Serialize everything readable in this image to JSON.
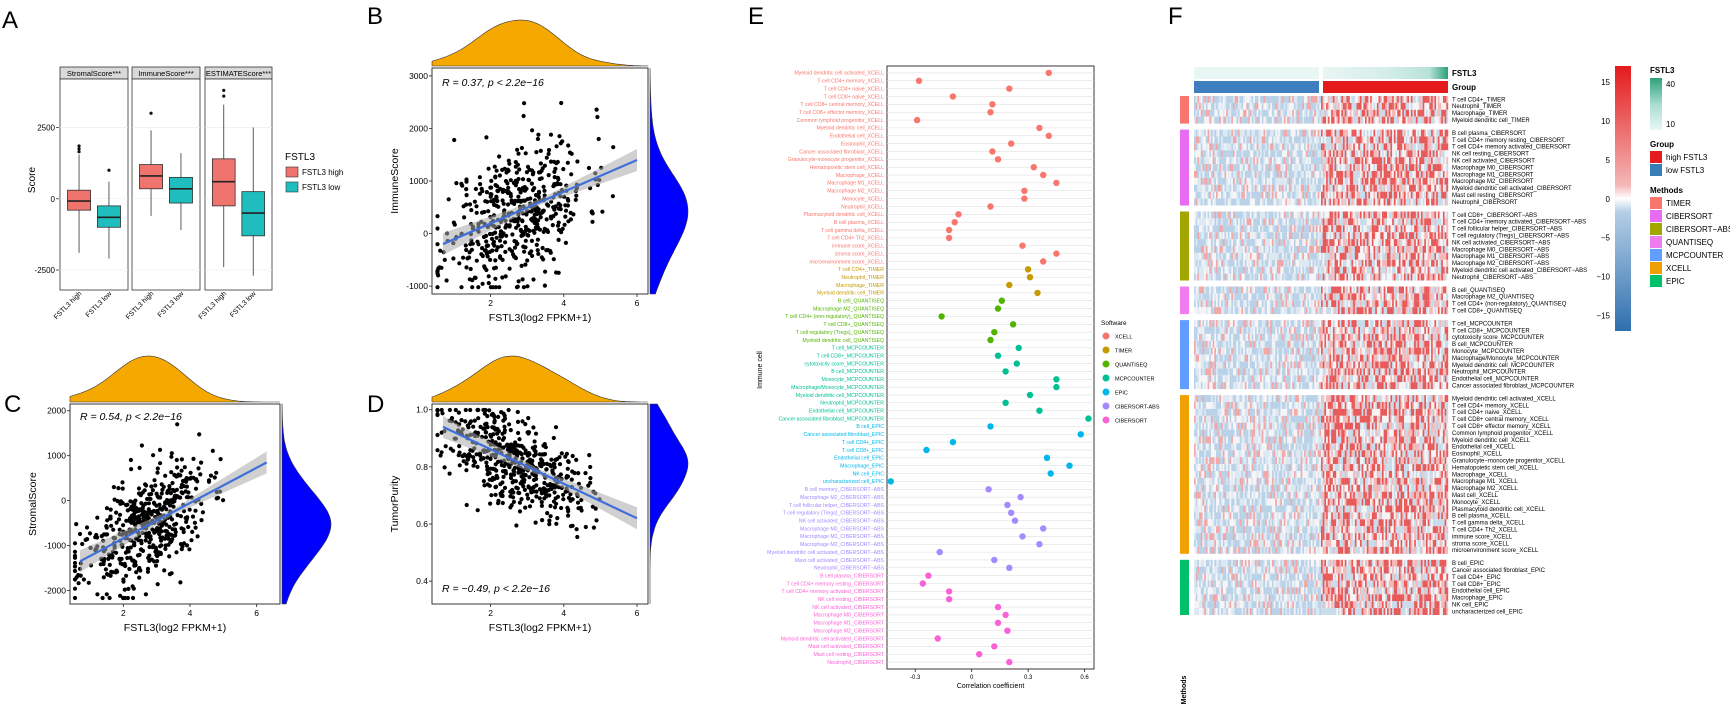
{
  "panel_labels": {
    "A": "A",
    "B": "B",
    "C": "C",
    "D": "D",
    "E": "E",
    "F": "F"
  },
  "colors": {
    "high": "#F0746E",
    "low": "#1FBDBD",
    "density": "#F5A800",
    "marginal": "#0000FF",
    "fit": "#3F6FD9"
  },
  "chart_data": [
    {
      "id": "A",
      "type": "box",
      "ylabel": "Score",
      "yticks": [
        -2500,
        0,
        2500
      ],
      "ylim": [
        -3200,
        4200
      ],
      "facets": [
        {
          "title": "StromalScore***",
          "groups": [
            {
              "label": "FSTL3 high",
              "q1": -400,
              "median": -80,
              "q3": 300,
              "wlo": -1900,
              "whi": 1550,
              "outliers": [
                1650,
                1750,
                1850
              ]
            },
            {
              "label": "FSTL3 low",
              "q1": -1000,
              "median": -650,
              "q3": -250,
              "wlo": -2100,
              "whi": 600,
              "outliers": [
                1000
              ]
            }
          ]
        },
        {
          "title": "ImmuneScore***",
          "groups": [
            {
              "label": "FSTL3 high",
              "q1": 350,
              "median": 800,
              "q3": 1200,
              "wlo": -600,
              "whi": 2400,
              "outliers": [
                3000
              ]
            },
            {
              "label": "FSTL3 low",
              "q1": -150,
              "median": 350,
              "q3": 750,
              "wlo": -1100,
              "whi": 1600,
              "outliers": []
            }
          ]
        },
        {
          "title": "ESTIMATEScore***",
          "groups": [
            {
              "label": "FSTL3 high",
              "q1": -250,
              "median": 600,
              "q3": 1400,
              "wlo": -2400,
              "whi": 3300,
              "outliers": [
                3600,
                3800
              ]
            },
            {
              "label": "FSTL3 low",
              "q1": -1300,
              "median": -500,
              "q3": 250,
              "wlo": -2700,
              "whi": 2500,
              "outliers": []
            }
          ]
        }
      ],
      "legend": {
        "title": "FSTL3",
        "items": [
          "FSTL3 high",
          "FSTL3 low"
        ]
      }
    },
    {
      "id": "B",
      "type": "scatter",
      "xlabel": "FSTL3(log2 FPKM+1)",
      "ylabel": "ImmuneScore",
      "stat_r": "R = 0.37, ",
      "stat_p": "p < 2.2e−16",
      "xticks": [
        2,
        4,
        6
      ],
      "yticks": [
        -1000,
        0,
        1000,
        2000,
        3000
      ],
      "xlim": [
        0.4,
        6.3
      ],
      "ylim": [
        -1150,
        3150
      ],
      "fit": {
        "x0": 0.7,
        "y0": -200,
        "x1": 6.0,
        "y1": 1400
      },
      "n": 520,
      "seed": 11,
      "xmean": 2.7,
      "xsd": 0.95,
      "noise": 650
    },
    {
      "id": "C",
      "type": "scatter",
      "xlabel": "FSTL3(log2 FPKM+1)",
      "ylabel": "StromalScore",
      "stat_r": "R = 0.54, ",
      "stat_p": "p < 2.2e−16",
      "xticks": [
        2,
        4,
        6
      ],
      "yticks": [
        -2000,
        -1000,
        0,
        1000,
        2000
      ],
      "xlim": [
        0.4,
        6.7
      ],
      "ylim": [
        -2300,
        2150
      ],
      "fit": {
        "x0": 0.7,
        "y0": -1350,
        "x1": 6.3,
        "y1": 850
      },
      "n": 520,
      "seed": 23,
      "xmean": 2.6,
      "xsd": 0.95,
      "noise": 600
    },
    {
      "id": "D",
      "type": "scatter",
      "xlabel": "FSTL3(log2 FPKM+1)",
      "ylabel": "TumorPurity",
      "stat_r": "R = −0.49, ",
      "stat_p": "p < 2.2e−16",
      "xticks": [
        2,
        4,
        6
      ],
      "yticks": [
        0.4,
        0.6,
        0.8,
        1.0
      ],
      "xlim": [
        0.4,
        6.3
      ],
      "ylim": [
        0.32,
        1.02
      ],
      "fit": {
        "x0": 0.7,
        "y0": 0.94,
        "x1": 6.0,
        "y1": 0.62
      },
      "n": 520,
      "seed": 37,
      "xmean": 2.7,
      "xsd": 0.95,
      "noise": 0.08
    },
    {
      "id": "E",
      "type": "dot",
      "xlabel": "Correlation coefficient",
      "ylabel": "Immune cell",
      "xticks": [
        -0.3,
        0,
        0.3,
        0.6
      ],
      "xlim": [
        -0.45,
        0.65
      ],
      "legend_title": "Software",
      "software": [
        {
          "name": "XCELL",
          "color": "#F8766D"
        },
        {
          "name": "TIMER",
          "color": "#C49A00"
        },
        {
          "name": "QUANTISEQ",
          "color": "#53B400"
        },
        {
          "name": "MCPCOUNTER",
          "color": "#00C094"
        },
        {
          "name": "EPIC",
          "color": "#00B6EB"
        },
        {
          "name": "CIBERSORT-ABS",
          "color": "#A58AFF"
        },
        {
          "name": "CIBERSORT",
          "color": "#FB61D7"
        }
      ],
      "points": [
        {
          "label": "Myeloid dendritic cell activated_XCELL",
          "v": 0.41,
          "s": 0
        },
        {
          "label": "T cell CD4+ memory_XCELL",
          "v": -0.28,
          "s": 0
        },
        {
          "label": "T cell CD4+ naive_XCELL",
          "v": 0.2,
          "s": 0
        },
        {
          "label": "T cell CD8+ naive_XCELL",
          "v": -0.1,
          "s": 0
        },
        {
          "label": "T cell CD8+ central memory_XCELL",
          "v": 0.11,
          "s": 0
        },
        {
          "label": "T cell CD8+ effector memory_XCELL",
          "v": 0.1,
          "s": 0
        },
        {
          "label": "Common lymphoid progenitor_XCELL",
          "v": -0.29,
          "s": 0
        },
        {
          "label": "Myeloid dendritic cell_XCELL",
          "v": 0.36,
          "s": 0
        },
        {
          "label": "Endothelial cell_XCELL",
          "v": 0.41,
          "s": 0
        },
        {
          "label": "Eosinophil_XCELL",
          "v": 0.21,
          "s": 0
        },
        {
          "label": "Cancer associated fibroblast_XCELL",
          "v": 0.11,
          "s": 0
        },
        {
          "label": "Granulocyte-monocyte progenitor_XCELL",
          "v": 0.14,
          "s": 0
        },
        {
          "label": "Hematopoietic stem cell_XCELL",
          "v": 0.33,
          "s": 0
        },
        {
          "label": "Macrophage_XCELL",
          "v": 0.38,
          "s": 0
        },
        {
          "label": "Macrophage M1_XCELL",
          "v": 0.45,
          "s": 0
        },
        {
          "label": "Macrophage M2_XCELL",
          "v": 0.28,
          "s": 0
        },
        {
          "label": "Monocyte_XCELL",
          "v": 0.28,
          "s": 0
        },
        {
          "label": "Neutrophil_XCELL",
          "v": 0.1,
          "s": 0
        },
        {
          "label": "Plasmacytoid dendritic cell_XCELL",
          "v": -0.07,
          "s": 0
        },
        {
          "label": "B cell plasma_XCELL",
          "v": -0.09,
          "s": 0
        },
        {
          "label": "T cell gamma delta_XCELL",
          "v": -0.12,
          "s": 0
        },
        {
          "label": "T cell CD4+ Th2_XCELL",
          "v": -0.12,
          "s": 0
        },
        {
          "label": "immune score_XCELL",
          "v": 0.27,
          "s": 0
        },
        {
          "label": "stroma score_XCELL",
          "v": 0.45,
          "s": 0
        },
        {
          "label": "microenvironment score_XCELL",
          "v": 0.38,
          "s": 0
        },
        {
          "label": "T cell CD4+_TIMER",
          "v": 0.3,
          "s": 1
        },
        {
          "label": "Neutrophil_TIMER",
          "v": 0.31,
          "s": 1
        },
        {
          "label": "Macrophage_TIMER",
          "v": 0.2,
          "s": 1
        },
        {
          "label": "Myeloid dendritic cell_TIMER",
          "v": 0.35,
          "s": 1
        },
        {
          "label": "B cell_QUANTISEQ",
          "v": 0.16,
          "s": 2
        },
        {
          "label": "Macrophage M2_QUANTISEQ",
          "v": 0.14,
          "s": 2
        },
        {
          "label": "T cell CD4+ (non-regulatory)_QUANTISEQ",
          "v": -0.16,
          "s": 2
        },
        {
          "label": "T cell CD8+_QUANTISEQ",
          "v": 0.22,
          "s": 2
        },
        {
          "label": "T cell regulatory (Tregs)_QUANTISEQ",
          "v": 0.12,
          "s": 2
        },
        {
          "label": "Myeloid dendritic cell_QUANTISEQ",
          "v": 0.1,
          "s": 2
        },
        {
          "label": "T cell_MCPCOUNTER",
          "v": 0.25,
          "s": 3
        },
        {
          "label": "T cell CD8+_MCPCOUNTER",
          "v": 0.14,
          "s": 3
        },
        {
          "label": "cytotoxicity score_MCPCOUNTER",
          "v": 0.24,
          "s": 3
        },
        {
          "label": "B cell_MCPCOUNTER",
          "v": 0.18,
          "s": 3
        },
        {
          "label": "Monocyte_MCPCOUNTER",
          "v": 0.45,
          "s": 3
        },
        {
          "label": "Macrophage/Monocyte_MCPCOUNTER",
          "v": 0.45,
          "s": 3
        },
        {
          "label": "Myeloid dendritic cell_MCPCOUNTER",
          "v": 0.31,
          "s": 3
        },
        {
          "label": "Neutrophil_MCPCOUNTER",
          "v": 0.18,
          "s": 3
        },
        {
          "label": "Endothelial cell_MCPCOUNTER",
          "v": 0.36,
          "s": 3
        },
        {
          "label": "Cancer associated fibroblast_MCPCOUNTER",
          "v": 0.62,
          "s": 3
        },
        {
          "label": "B cell_EPIC",
          "v": 0.1,
          "s": 4
        },
        {
          "label": "Cancer associated fibroblast_EPIC",
          "v": 0.58,
          "s": 4
        },
        {
          "label": "T cell CD4+_EPIC",
          "v": -0.1,
          "s": 4
        },
        {
          "label": "T cell CD8+_EPIC",
          "v": -0.24,
          "s": 4
        },
        {
          "label": "Endothelial cell_EPIC",
          "v": 0.4,
          "s": 4
        },
        {
          "label": "Macrophage_EPIC",
          "v": 0.52,
          "s": 4
        },
        {
          "label": "NK cell_EPIC",
          "v": 0.42,
          "s": 4
        },
        {
          "label": "uncharacterized cell_EPIC",
          "v": -0.43,
          "s": 4
        },
        {
          "label": "B cell memory_CIBERSORT−ABS",
          "v": 0.09,
          "s": 5
        },
        {
          "label": "Macrophage M2_CIBERSORT−ABS",
          "v": 0.26,
          "s": 5
        },
        {
          "label": "T cell follicular helper_CIBERSORT−ABS",
          "v": 0.19,
          "s": 5
        },
        {
          "label": "T cell regulatory (Tregs)_CIBERSORT−ABS",
          "v": 0.21,
          "s": 5
        },
        {
          "label": "NK cell activated_CIBERSORT−ABS",
          "v": 0.23,
          "s": 5
        },
        {
          "label": "Macrophage M0_CIBERSORT−ABS",
          "v": 0.38,
          "s": 5
        },
        {
          "label": "Macrophage M1_CIBERSORT−ABS",
          "v": 0.27,
          "s": 5
        },
        {
          "label": "Macrophage M2_CIBERSORT−ABS",
          "v": 0.36,
          "s": 5
        },
        {
          "label": "Myeloid dendritic cell activated_CIBERSORT−ABS",
          "v": -0.17,
          "s": 5
        },
        {
          "label": "Mast cell activated_CIBERSORT−ABS",
          "v": 0.12,
          "s": 5
        },
        {
          "label": "Neutrophil_CIBERSORT−ABS",
          "v": 0.2,
          "s": 5
        },
        {
          "label": "B cell plasma_CIBERSORT",
          "v": -0.23,
          "s": 6
        },
        {
          "label": "T cell CD4+ memory resting_CIBERSORT",
          "v": -0.26,
          "s": 6
        },
        {
          "label": "T cell CD4+ memory activated_CIBERSORT",
          "v": -0.12,
          "s": 6
        },
        {
          "label": "NK cell resting_CIBERSORT",
          "v": -0.12,
          "s": 6
        },
        {
          "label": "NK cell activated_CIBERSORT",
          "v": 0.14,
          "s": 6
        },
        {
          "label": "Macrophage M0_CIBERSORT",
          "v": 0.18,
          "s": 6
        },
        {
          "label": "Macrophage M1_CIBERSORT",
          "v": 0.14,
          "s": 6
        },
        {
          "label": "Macrophage M2_CIBERSORT",
          "v": 0.19,
          "s": 6
        },
        {
          "label": "Myeloid dendritic cell activated_CIBERSORT",
          "v": -0.18,
          "s": 6
        },
        {
          "label": "Mast cell activated_CIBERSORT",
          "v": 0.12,
          "s": 6
        },
        {
          "label": "Mast cell resting_CIBERSORT",
          "v": 0.04,
          "s": 6
        },
        {
          "label": "Neutrophil_CIBERSORT",
          "v": 0.2,
          "s": 6
        }
      ]
    },
    {
      "id": "F",
      "type": "heatmap",
      "top_annotations": [
        "FSTL3",
        "Group"
      ],
      "side_title": "Methods",
      "group_split_fraction": 0.5,
      "legend_fstl3": {
        "title": "FSTL3",
        "ticks": [
          40,
          10
        ]
      },
      "legend_scale": {
        "ticks": [
          15,
          10,
          5,
          0,
          -5,
          -10,
          -15
        ]
      },
      "legend_group": {
        "title": "Group",
        "items": [
          {
            "name": "high FSTL3",
            "color": "#E41A1C"
          },
          {
            "name": "low FSTL3",
            "color": "#377EB8"
          }
        ]
      },
      "legend_methods": {
        "title": "Methods",
        "items": [
          {
            "name": "TIMER",
            "color": "#F8766D"
          },
          {
            "name": "CIBERSORT",
            "color": "#E76BF3"
          },
          {
            "name": "CIBERSORT−ABS",
            "color": "#A3A500"
          },
          {
            "name": "QUANTISEQ",
            "color": "#F07CF0"
          },
          {
            "name": "MCPCOUNTER",
            "color": "#619CFF"
          },
          {
            "name": "XCELL",
            "color": "#F0A000"
          },
          {
            "name": "EPIC",
            "color": "#00C06A"
          }
        ]
      },
      "blocks": [
        {
          "method": 0,
          "rows": [
            "T cell CD4+_TIMER",
            "Neutrophil_TIMER",
            "Macrophage_TIMER",
            "Myeloid dendritic cell_TIMER"
          ]
        },
        {
          "method": 1,
          "rows": [
            "B cell plasma_CIBERSORT",
            "T cell CD4+ memory resting_CIBERSORT",
            "T cell CD4+ memory activated_CIBERSORT",
            "NK cell resting_CIBERSORT",
            "NK cell activated_CIBERSORT",
            "Macrophage M0_CIBERSORT",
            "Macrophage M1_CIBERSORT",
            "Macrophage M2_CIBERSORT",
            "Myeloid dendritic cell activated_CIBERSORT",
            "Mast cell resting_CIBERSORT",
            "Neutrophil_CIBERSORT"
          ]
        },
        {
          "method": 2,
          "rows": [
            "T cell CD8+_CIBERSORT−ABS",
            "T cell CD4+ memory activated_CIBERSORT−ABS",
            "T cell follicular helper_CIBERSORT−ABS",
            "T cell regulatory (Tregs)_CIBERSORT−ABS",
            "NK cell activated_CIBERSORT−ABS",
            "Macrophage M0_CIBERSORT−ABS",
            "Macrophage M1_CIBERSORT−ABS",
            "Macrophage M2_CIBERSORT−ABS",
            "Myeloid dendritic cell activated_CIBERSORT−ABS",
            "Neutrophil_CIBERSORT−ABS"
          ]
        },
        {
          "method": 3,
          "rows": [
            "B cell_QUANTISEQ",
            "Macrophage M2_QUANTISEQ",
            "T cell CD4+ (non-regulatory)_QUANTISEQ",
            "T cell CD8+_QUANTISEQ"
          ]
        },
        {
          "method": 4,
          "rows": [
            "T cell_MCPCOUNTER",
            "T cell CD8+_MCPCOUNTER",
            "cytotoxicity score_MCPCOUNTER",
            "B cell_MCPCOUNTER",
            "Monocyte_MCPCOUNTER",
            "Macrophage/Monocyte_MCPCOUNTER",
            "Myeloid dendritic cell_MCPCOUNTER",
            "Neutrophil_MCPCOUNTER",
            "Endothelial cell_MCPCOUNTER",
            "Cancer associated fibroblast_MCPCOUNTER"
          ]
        },
        {
          "method": 5,
          "rows": [
            "Myeloid dendritic cell activated_XCELL",
            "T cell CD4+ memory_XCELL",
            "T cell CD4+ naive_XCELL",
            "T cell CD8+ central memory_XCELL",
            "T cell CD8+ effector memory_XCELL",
            "Common lymphoid progenitor_XCELL",
            "Myeloid dendritic cell_XCELL",
            "Endothelial cell_XCELL",
            "Eosinophil_XCELL",
            "Granulocyte−monocyte progenitor_XCELL",
            "Hematopoietic stem cell_XCELL",
            "Macrophage_XCELL",
            "Macrophage M1_XCELL",
            "Macrophage M2_XCELL",
            "Mast cell_XCELL",
            "Monocyte_XCELL",
            "Plasmacytoid dendritic cell_XCELL",
            "B cell plasma_XCELL",
            "T cell gamma delta_XCELL",
            "T cell CD4+ Th2_XCELL",
            "immune score_XCELL",
            "stroma score_XCELL",
            "microenvironment score_XCELL"
          ]
        },
        {
          "method": 6,
          "rows": [
            "B cell_EPIC",
            "Cancer associated fibroblast_EPIC",
            "T cell CD4+_EPIC",
            "T cell CD8+_EPIC",
            "Endothelial cell_EPIC",
            "Macrophage_EPIC",
            "NK cell_EPIC",
            "uncharacterized cell_EPIC"
          ]
        }
      ]
    }
  ]
}
